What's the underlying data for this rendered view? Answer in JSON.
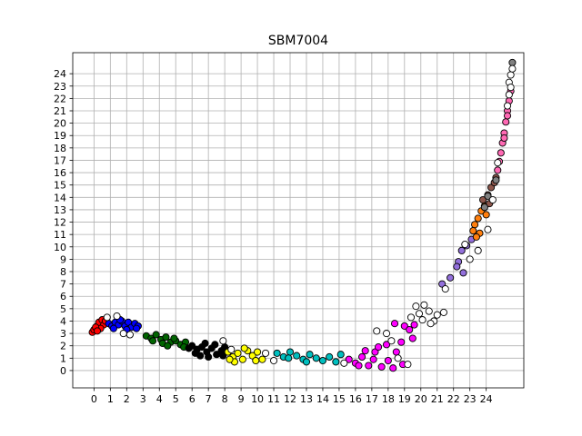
{
  "chart_data": {
    "type": "scatter",
    "title": "SBM7004",
    "xlabel": "",
    "ylabel": "",
    "xlim": [
      -1.3,
      26.3
    ],
    "ylim": [
      -1.4,
      25.7
    ],
    "xticks": [
      "0",
      "1",
      "2",
      "3",
      "4",
      "5",
      "6",
      "7",
      "8",
      "9",
      "10",
      "11",
      "12",
      "13",
      "14",
      "15",
      "16",
      "17",
      "18",
      "19",
      "20",
      "21",
      "22",
      "23",
      "24"
    ],
    "yticks": [
      "0",
      "1",
      "2",
      "3",
      "4",
      "5",
      "6",
      "7",
      "8",
      "9",
      "10",
      "11",
      "12",
      "13",
      "14",
      "15",
      "16",
      "17",
      "18",
      "19",
      "20",
      "21",
      "22",
      "23",
      "24"
    ],
    "grid": true,
    "legend": "none",
    "series": [
      {
        "color": "#ff0000",
        "points": [
          [
            -0.1,
            3.1
          ],
          [
            0,
            3.3
          ],
          [
            0.2,
            3.6
          ],
          [
            0.3,
            3.9
          ],
          [
            0.5,
            4.1
          ],
          [
            0.6,
            3.7
          ],
          [
            0.4,
            3.4
          ],
          [
            0.1,
            3.5
          ],
          [
            0.7,
            4.0
          ],
          [
            0.2,
            3.2
          ]
        ]
      },
      {
        "color": "#0000ff",
        "points": [
          [
            0.9,
            3.8
          ],
          [
            1.1,
            3.6
          ],
          [
            1.3,
            3.9
          ],
          [
            1.5,
            3.7
          ],
          [
            1.7,
            4.0
          ],
          [
            1.9,
            3.6
          ],
          [
            2.1,
            3.9
          ],
          [
            2.3,
            3.5
          ],
          [
            2.5,
            3.8
          ],
          [
            2.7,
            3.6
          ],
          [
            1.2,
            3.4
          ],
          [
            2.0,
            3.3
          ],
          [
            2.6,
            3.4
          ],
          [
            1.6,
            4.1
          ]
        ]
      },
      {
        "color": "#006400",
        "points": [
          [
            3.2,
            2.8
          ],
          [
            3.5,
            2.6
          ],
          [
            3.8,
            2.9
          ],
          [
            4.1,
            2.5
          ],
          [
            4.4,
            2.7
          ],
          [
            4.7,
            2.3
          ],
          [
            5.0,
            2.4
          ],
          [
            5.3,
            2.1
          ],
          [
            5.6,
            2.3
          ],
          [
            3.6,
            2.4
          ],
          [
            4.2,
            2.2
          ],
          [
            4.9,
            2.6
          ],
          [
            5.5,
            1.9
          ],
          [
            4.5,
            2.0
          ]
        ]
      },
      {
        "color": "#000000",
        "points": [
          [
            6.0,
            2.0
          ],
          [
            6.3,
            1.7
          ],
          [
            6.6,
            1.9
          ],
          [
            6.9,
            1.5
          ],
          [
            7.2,
            1.8
          ],
          [
            7.5,
            1.3
          ],
          [
            7.8,
            1.6
          ],
          [
            6.2,
            1.4
          ],
          [
            6.8,
            2.2
          ],
          [
            7.4,
            2.1
          ],
          [
            7.9,
            1.2
          ],
          [
            5.8,
            1.8
          ],
          [
            7.0,
            1.1
          ],
          [
            8.0,
            1.9
          ],
          [
            6.5,
            1.2
          ]
        ]
      },
      {
        "color": "#ffff00",
        "points": [
          [
            8.2,
            1.5
          ],
          [
            8.5,
            1.1
          ],
          [
            8.8,
            1.4
          ],
          [
            9.1,
            0.9
          ],
          [
            9.4,
            1.6
          ],
          [
            9.7,
            1.2
          ],
          [
            10.0,
            1.5
          ],
          [
            10.3,
            0.9
          ],
          [
            8.6,
            0.7
          ],
          [
            9.2,
            1.8
          ],
          [
            9.9,
            0.8
          ],
          [
            8.3,
            0.9
          ]
        ]
      },
      {
        "color": "#00bfbf",
        "points": [
          [
            11.2,
            1.4
          ],
          [
            11.6,
            1.1
          ],
          [
            12.0,
            1.5
          ],
          [
            12.4,
            1.2
          ],
          [
            12.8,
            0.9
          ],
          [
            13.2,
            1.3
          ],
          [
            13.6,
            1.0
          ],
          [
            14.0,
            0.8
          ],
          [
            14.4,
            1.1
          ],
          [
            14.8,
            0.7
          ],
          [
            15.1,
            1.3
          ],
          [
            11.9,
            1.0
          ],
          [
            13.0,
            0.7
          ]
        ]
      },
      {
        "color": "#ff00ff",
        "points": [
          [
            15.6,
            0.9
          ],
          [
            16.0,
            0.6
          ],
          [
            16.4,
            1.1
          ],
          [
            16.8,
            0.4
          ],
          [
            17.2,
            1.5
          ],
          [
            17.6,
            0.3
          ],
          [
            18.0,
            0.8
          ],
          [
            18.3,
            0.2
          ],
          [
            16.6,
            1.6
          ],
          [
            17.4,
            1.9
          ],
          [
            18.5,
            1.5
          ],
          [
            18.8,
            2.3
          ],
          [
            19.0,
            3.6
          ],
          [
            19.3,
            3.3
          ],
          [
            19.6,
            3.7
          ],
          [
            17.9,
            2.1
          ],
          [
            18.4,
            3.8
          ],
          [
            17.1,
            0.9
          ],
          [
            16.2,
            0.4
          ],
          [
            18.9,
            0.5
          ],
          [
            19.5,
            2.6
          ]
        ]
      },
      {
        "color": "#9370db",
        "points": [
          [
            21.3,
            7.0
          ],
          [
            21.8,
            7.5
          ],
          [
            22.3,
            8.8
          ],
          [
            22.5,
            9.7
          ],
          [
            22.8,
            10.1
          ],
          [
            23.1,
            10.6
          ],
          [
            22.6,
            7.9
          ],
          [
            22.2,
            8.4
          ]
        ]
      },
      {
        "color": "#ff7f0e",
        "points": [
          [
            23.3,
            11.8
          ],
          [
            23.5,
            12.3
          ],
          [
            23.7,
            12.9
          ],
          [
            23.2,
            11.3
          ],
          [
            23.9,
            13.3
          ],
          [
            23.6,
            11.1
          ],
          [
            24.0,
            12.6
          ],
          [
            23.4,
            10.8
          ]
        ]
      },
      {
        "color": "#8c564b",
        "points": [
          [
            23.8,
            13.8
          ],
          [
            24.1,
            14.2
          ],
          [
            24.3,
            14.8
          ],
          [
            24.5,
            15.2
          ],
          [
            24.2,
            13.5
          ],
          [
            24.6,
            15.6
          ]
        ]
      },
      {
        "color": "#ff69b4",
        "points": [
          [
            24.7,
            16.2
          ],
          [
            24.8,
            16.9
          ],
          [
            24.9,
            17.6
          ],
          [
            25.0,
            18.4
          ],
          [
            25.1,
            19.2
          ],
          [
            25.2,
            20.1
          ],
          [
            25.3,
            21.0
          ],
          [
            25.4,
            21.8
          ],
          [
            25.5,
            22.6
          ],
          [
            25.3,
            20.6
          ],
          [
            25.1,
            18.8
          ]
        ]
      },
      {
        "color": "#808080",
        "points": [
          [
            23.9,
            13.2
          ],
          [
            24.1,
            14.1
          ],
          [
            25.6,
            24.9
          ],
          [
            24.6,
            15.4
          ]
        ]
      },
      {
        "color": "#ffffff",
        "points": [
          [
            0.8,
            4.3
          ],
          [
            1.4,
            4.4
          ],
          [
            1.8,
            3.0
          ],
          [
            2.2,
            2.9
          ],
          [
            7.9,
            2.4
          ],
          [
            8.4,
            1.7
          ],
          [
            10.5,
            1.4
          ],
          [
            11.0,
            0.8
          ],
          [
            15.3,
            0.6
          ],
          [
            17.3,
            3.2
          ],
          [
            17.9,
            3.0
          ],
          [
            18.2,
            2.4
          ],
          [
            18.6,
            1.0
          ],
          [
            19.2,
            0.5
          ],
          [
            19.9,
            4.6
          ],
          [
            19.7,
            5.2
          ],
          [
            20.2,
            5.3
          ],
          [
            20.5,
            4.8
          ],
          [
            20.8,
            4.0
          ],
          [
            21.0,
            4.5
          ],
          [
            21.4,
            4.7
          ],
          [
            19.4,
            4.3
          ],
          [
            20.1,
            4.1
          ],
          [
            21.5,
            6.6
          ],
          [
            23.0,
            9.0
          ],
          [
            23.5,
            9.7
          ],
          [
            24.1,
            11.4
          ],
          [
            24.4,
            13.8
          ],
          [
            25.4,
            23.3
          ],
          [
            25.5,
            23.9
          ],
          [
            25.6,
            24.4
          ],
          [
            25.5,
            22.9
          ],
          [
            25.4,
            22.3
          ],
          [
            25.3,
            21.4
          ],
          [
            24.7,
            16.8
          ],
          [
            22.7,
            10.2
          ],
          [
            20.6,
            3.8
          ]
        ]
      }
    ]
  }
}
